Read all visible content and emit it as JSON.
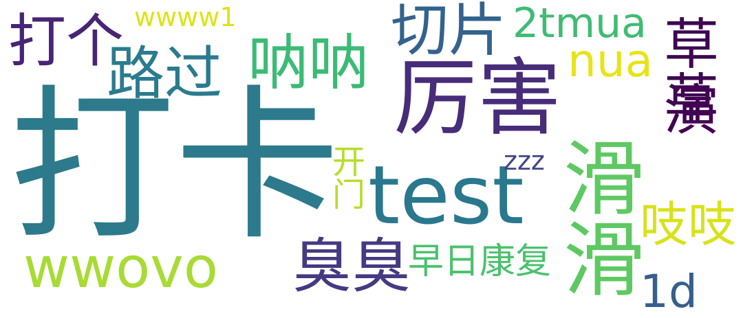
{
  "words": [
    {
      "text": "打卡",
      "color": "#2c7a8c"
    },
    {
      "text": "test",
      "color": "#2a788e"
    },
    {
      "text": "厉害",
      "color": "#472c7a"
    },
    {
      "text": "滑滑",
      "color": "#5ec962"
    },
    {
      "text": "臭臭",
      "color": "#443a83"
    },
    {
      "text": "呐呐",
      "color": "#3bbb75"
    },
    {
      "text": "路过",
      "color": "#2a7b8e"
    },
    {
      "text": "切片",
      "color": "#33638d"
    },
    {
      "text": "wwovo",
      "color": "#a8db34"
    },
    {
      "text": "打个",
      "color": "#482475"
    },
    {
      "text": "2tmua",
      "color": "#3fbc73"
    },
    {
      "text": "nua",
      "color": "#e7e419"
    },
    {
      "text": "草草",
      "color": "#3e0751"
    },
    {
      "text": "演",
      "color": "#440154"
    },
    {
      "text": "吱吱",
      "color": "#d8e219"
    },
    {
      "text": "早日康复",
      "color": "#4ac16d"
    },
    {
      "text": "1d",
      "color": "#355f8d"
    },
    {
      "text": "wwww1",
      "color": "#dde318"
    },
    {
      "text": "开门",
      "color": "#b5de2b"
    },
    {
      "text": "zzz",
      "color": "#414487"
    }
  ]
}
